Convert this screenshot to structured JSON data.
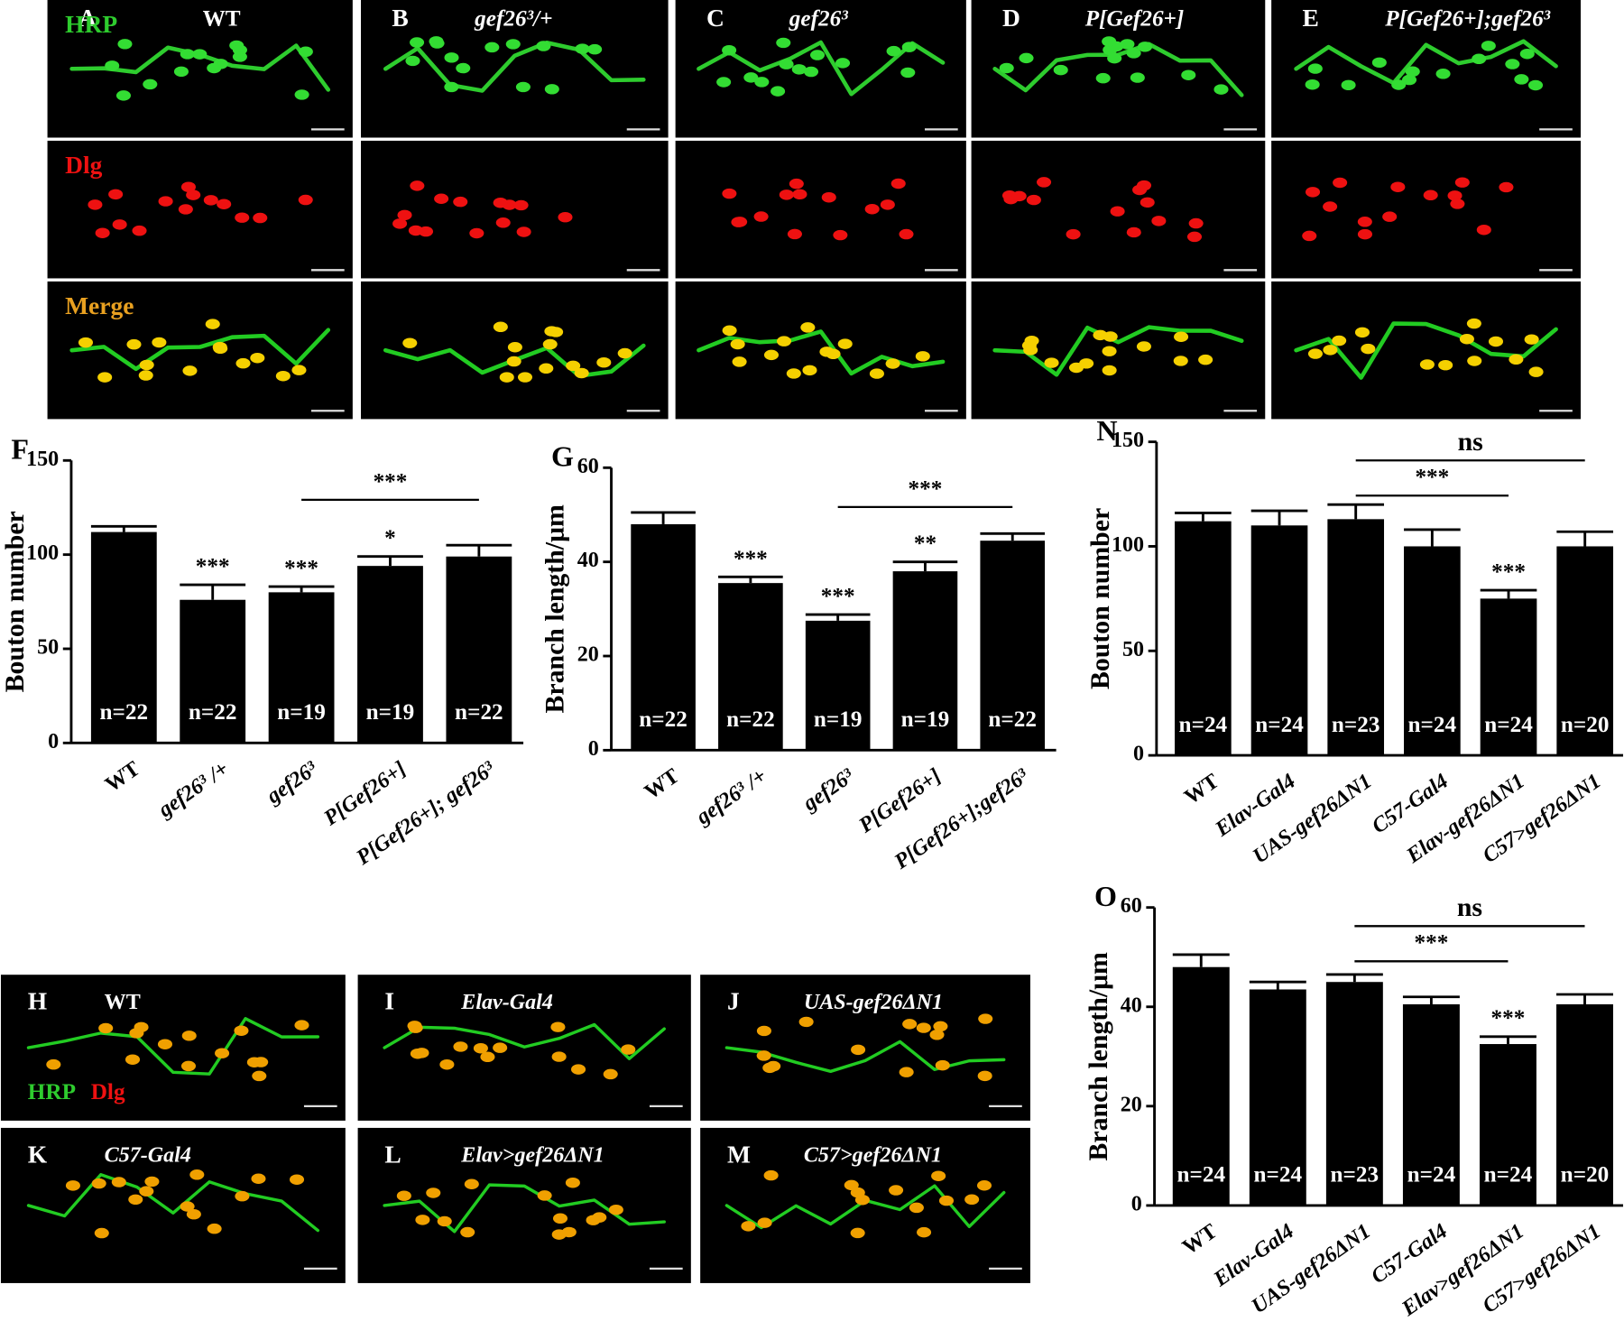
{
  "image_panels": {
    "top": [
      {
        "letter": "A",
        "label": "WT"
      },
      {
        "letter": "B",
        "label": "gef26³/+"
      },
      {
        "letter": "C",
        "label": "gef26³"
      },
      {
        "letter": "D",
        "label": "P[Gef26+]"
      },
      {
        "letter": "E",
        "label": "P[Gef26+];gef26³"
      }
    ],
    "channels": [
      "HRP",
      "Dlg",
      "Merge"
    ],
    "bottom": [
      {
        "letter": "H",
        "label": "WT"
      },
      {
        "letter": "I",
        "label": "Elav-Gal4"
      },
      {
        "letter": "J",
        "label": "UAS-gef26ΔN1"
      },
      {
        "letter": "K",
        "label": "C57-Gal4"
      },
      {
        "letter": "L",
        "label": "Elav>gef26ΔN1"
      },
      {
        "letter": "M",
        "label": "C57>gef26ΔN1"
      }
    ],
    "bottom_channels": [
      "HRP",
      "Dlg"
    ]
  },
  "chart_data": [
    {
      "type": "bar",
      "panel": "F",
      "ylabel": "Bouton number",
      "color": "#000000",
      "categories": [
        "WT",
        "gef26³ /+",
        "gef26³",
        "P[Gef26+]",
        "P[Gef26+];  gef26³"
      ],
      "values": [
        112,
        76,
        80,
        94,
        99
      ],
      "errors": [
        3,
        8,
        3,
        5,
        6
      ],
      "n_labels": [
        "n=22",
        "n=22",
        "n=19",
        "n=19",
        "n=22"
      ],
      "significance": [
        null,
        "***",
        "***",
        "*",
        null
      ],
      "brackets": [
        {
          "label": "***",
          "from": 2,
          "to": 4
        }
      ],
      "ylim": [
        0,
        150
      ],
      "yticks": [
        0,
        50,
        100,
        150
      ]
    },
    {
      "type": "bar",
      "panel": "G",
      "ylabel": "Branch length/μm",
      "color": "#000000",
      "categories": [
        "WT",
        "gef26³ /+",
        "gef26³",
        "P[Gef26+]",
        "P[Gef26+];gef26³"
      ],
      "values": [
        48,
        35.5,
        27.5,
        38,
        44.5
      ],
      "errors": [
        2.5,
        1.3,
        1.3,
        2,
        1.5
      ],
      "n_labels": [
        "n=22",
        "n=22",
        "n=19",
        "n=19",
        "n=22"
      ],
      "significance": [
        null,
        "***",
        "***",
        "**",
        null
      ],
      "brackets": [
        {
          "label": "***",
          "from": 2,
          "to": 4
        }
      ],
      "ylim": [
        0,
        60
      ],
      "yticks": [
        0,
        20,
        40,
        60
      ]
    },
    {
      "type": "bar",
      "panel": "N",
      "ylabel": "Bouton number",
      "color": "#000000",
      "categories": [
        "WT",
        "Elav-Gal4",
        "UAS-gef26ΔN1",
        "C57-Gal4",
        "Elav-gef26ΔN1",
        "C57>gef26ΔN1"
      ],
      "values": [
        112,
        110,
        113,
        100,
        75,
        100
      ],
      "errors": [
        4,
        7,
        7,
        8,
        4,
        7
      ],
      "n_labels": [
        "n=24",
        "n=24",
        "n=23",
        "n=24",
        "n=24",
        "n=20"
      ],
      "significance": [
        null,
        null,
        null,
        null,
        "***",
        null
      ],
      "brackets": [
        {
          "label": "ns",
          "from": 2,
          "to": 5
        },
        {
          "label": "***",
          "from": 2,
          "to": 4
        }
      ],
      "ylim": [
        0,
        150
      ],
      "yticks": [
        0,
        50,
        100,
        150
      ]
    },
    {
      "type": "bar",
      "panel": "O",
      "ylabel": "Branch length/μm",
      "color": "#000000",
      "categories": [
        "WT",
        "Elav-Gal4",
        "UAS-gef26ΔN1",
        "C57-Gal4",
        "Elav>gef26ΔN1",
        "C57>gef26ΔN1"
      ],
      "values": [
        48,
        43.5,
        45,
        40.5,
        32.5,
        40.5
      ],
      "errors": [
        2.5,
        1.5,
        1.5,
        1.5,
        1.5,
        2
      ],
      "n_labels": [
        "n=24",
        "n=24",
        "n=23",
        "n=24",
        "n=24",
        "n=20"
      ],
      "significance": [
        null,
        null,
        null,
        null,
        "***",
        null
      ],
      "brackets": [
        {
          "label": "ns",
          "from": 2,
          "to": 5
        },
        {
          "label": "***",
          "from": 2,
          "to": 4
        }
      ],
      "ylim": [
        0,
        60
      ],
      "yticks": [
        0,
        20,
        40,
        60
      ]
    }
  ]
}
